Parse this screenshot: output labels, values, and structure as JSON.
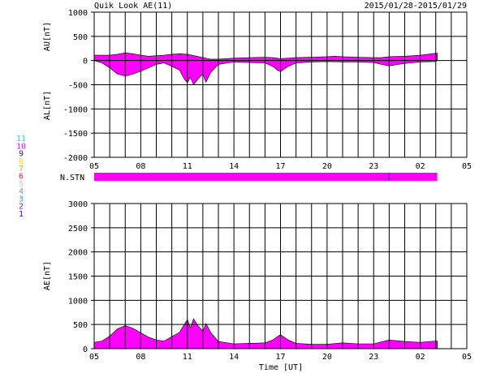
{
  "header": {
    "title": "Quik Look AE(11)",
    "date_range": "2015/01/28-2015/01/29"
  },
  "station_legend": {
    "items": [
      {
        "number": "11",
        "color": "#00e5ee"
      },
      {
        "number": "10",
        "color": "#ff00ff"
      },
      {
        "number": "9",
        "color": "#1a1aa6"
      },
      {
        "number": "8",
        "color": "#ffd700"
      },
      {
        "number": "7",
        "color": "#9acd32"
      },
      {
        "number": "6",
        "color": "#ff2020"
      },
      {
        "number": "5",
        "color": "#c8c8c8"
      },
      {
        "number": "4",
        "color": "#909090"
      },
      {
        "number": "3",
        "color": "#20b2aa"
      },
      {
        "number": "2",
        "color": "#b000b0"
      },
      {
        "number": "1",
        "color": "#2020c0"
      }
    ]
  },
  "colors": {
    "fill": "#ff00ff",
    "grid": "#000000",
    "axis": "#000000"
  },
  "chart_data": [
    {
      "type": "area",
      "panel": "AU/AL",
      "ylabel_upper": "AU[nT]",
      "ylabel_lower": "AL[nT]",
      "ylim": [
        -2000,
        1000
      ],
      "yticks": [
        -2000,
        -1500,
        -1000,
        -500,
        0,
        500,
        1000
      ],
      "xlim_hours": [
        5,
        29
      ],
      "xtick_labels": [
        "05",
        "08",
        "11",
        "14",
        "17",
        "20",
        "23",
        "02",
        "05"
      ],
      "grid": true,
      "series": [
        {
          "name": "AU",
          "x": [
            5.0,
            5.5,
            6.0,
            6.5,
            7.0,
            7.5,
            8.0,
            8.5,
            9.0,
            9.5,
            10.0,
            10.5,
            11.0,
            11.3,
            11.6,
            12.0,
            12.5,
            13.0,
            14.0,
            15.0,
            16.0,
            16.5,
            17.0,
            17.5,
            18.0,
            19.0,
            20.0,
            20.5,
            21.0,
            22.0,
            23.0,
            23.5,
            24.0,
            25.0,
            26.0,
            27.0,
            27.1
          ],
          "values": [
            110,
            110,
            110,
            130,
            160,
            140,
            110,
            90,
            100,
            110,
            130,
            140,
            130,
            110,
            90,
            60,
            30,
            30,
            50,
            60,
            70,
            60,
            40,
            50,
            60,
            70,
            80,
            90,
            80,
            70,
            60,
            60,
            80,
            90,
            110,
            150,
            150
          ]
        },
        {
          "name": "AL",
          "x": [
            5.0,
            5.5,
            6.0,
            6.5,
            7.0,
            7.5,
            8.0,
            8.5,
            9.0,
            9.5,
            10.0,
            10.5,
            10.8,
            11.0,
            11.2,
            11.4,
            11.7,
            12.0,
            12.2,
            12.5,
            13.0,
            14.0,
            15.0,
            16.0,
            16.5,
            16.8,
            17.0,
            17.5,
            18.0,
            19.0,
            20.0,
            21.0,
            22.0,
            23.0,
            23.5,
            24.0,
            25.0,
            26.0,
            27.0,
            27.1
          ],
          "values": [
            0,
            -50,
            -150,
            -280,
            -320,
            -280,
            -220,
            -150,
            -80,
            -50,
            -120,
            -200,
            -380,
            -460,
            -350,
            -500,
            -380,
            -280,
            -450,
            -250,
            -80,
            -30,
            -40,
            -50,
            -120,
            -200,
            -230,
            -120,
            -50,
            -30,
            -20,
            -30,
            -30,
            -40,
            -80,
            -110,
            -60,
            -30,
            -20,
            0
          ]
        }
      ]
    },
    {
      "type": "bar",
      "panel": "station-count",
      "ylabel": "N.STN",
      "segments": [
        {
          "x_start": 5.0,
          "x_end": 24.0,
          "station_count": 10
        },
        {
          "x_start": 24.0,
          "x_end": 27.1,
          "station_count": 10
        }
      ]
    },
    {
      "type": "area",
      "panel": "AE",
      "ylabel": "AE[nT]",
      "xlabel": "Time [UT]",
      "ylim": [
        0,
        3000
      ],
      "yticks": [
        0,
        500,
        1000,
        1500,
        2000,
        2500,
        3000
      ],
      "xlim_hours": [
        5,
        29
      ],
      "xtick_labels": [
        "05",
        "08",
        "11",
        "14",
        "17",
        "20",
        "23",
        "02",
        "05"
      ],
      "grid": true,
      "series": [
        {
          "name": "AE",
          "x": [
            5.0,
            5.5,
            6.0,
            6.5,
            7.0,
            7.5,
            8.0,
            8.5,
            9.0,
            9.5,
            10.0,
            10.5,
            10.8,
            11.0,
            11.2,
            11.4,
            11.7,
            12.0,
            12.2,
            12.5,
            13.0,
            14.0,
            15.0,
            16.0,
            16.5,
            16.8,
            17.0,
            17.5,
            18.0,
            19.0,
            20.0,
            21.0,
            22.0,
            23.0,
            23.5,
            24.0,
            25.0,
            26.0,
            27.0,
            27.1
          ],
          "values": [
            130,
            160,
            260,
            410,
            480,
            420,
            330,
            240,
            180,
            160,
            250,
            340,
            500,
            600,
            430,
            620,
            470,
            360,
            520,
            340,
            150,
            100,
            110,
            120,
            180,
            250,
            290,
            180,
            110,
            90,
            90,
            120,
            100,
            100,
            140,
            180,
            150,
            130,
            160,
            160
          ]
        }
      ]
    }
  ]
}
